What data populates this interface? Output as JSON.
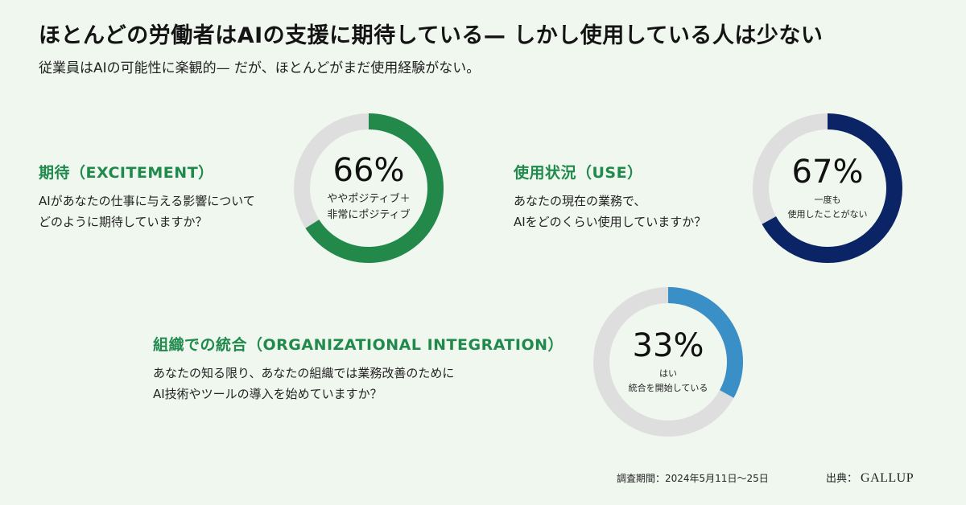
{
  "title": "ほとんどの労働者はAIの支援に期待している— しかし使用している人は少ない",
  "subtitle": "従業員はAIの可能性に楽観的— だが、ほとんどがまだ使用経験がない。",
  "chart_data": [
    {
      "type": "pie",
      "heading": "期待（EXCITEMENT）",
      "question": [
        "AIがあなたの仕事に与える影響について",
        "どのように期待していますか？"
      ],
      "value_label": "66%",
      "value": 66,
      "center_label": [
        "ややポジティブ＋",
        "非常にポジティブ"
      ],
      "color": "#23894a",
      "track_color": "#dedede"
    },
    {
      "type": "pie",
      "heading": "使用状況（USE）",
      "question": [
        "あなたの現在の業務で、",
        "AIをどのくらい使用していますか？"
      ],
      "value_label": "67%",
      "value": 67,
      "center_label": [
        "一度も",
        "使用したことがない"
      ],
      "color": "#0b2466",
      "track_color": "#dedede"
    },
    {
      "type": "pie",
      "heading": "組織での統合（ORGANIZATIONAL INTEGRATION）",
      "question": [
        "あなたの知る限り、あなたの組織では業務改善のために",
        "AI技術やツールの導入を始めていますか？"
      ],
      "value_label": "33%",
      "value": 33,
      "center_label": [
        "はい",
        "統合を開始している"
      ],
      "color": "#3a8fc6",
      "track_color": "#dedede"
    }
  ],
  "footer": {
    "period": "調査期間：2024年5月11日〜25日",
    "source_label": "出典：",
    "source_logo": "GALLUP"
  }
}
